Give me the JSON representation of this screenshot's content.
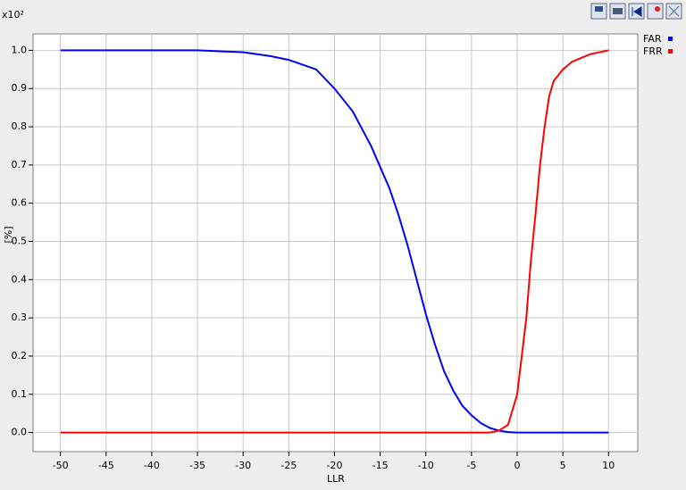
{
  "chart_data": {
    "type": "line",
    "x_label": "LLR",
    "y_label": "[%]",
    "y_multiplier": "x10²",
    "xlim": [
      -53,
      13.2
    ],
    "ylim": [
      -0.05,
      1.043
    ],
    "xticks": [
      -50,
      -45,
      -40,
      -35,
      -30,
      -25,
      -20,
      -15,
      -10,
      -5,
      0,
      5,
      10
    ],
    "yticks": [
      {
        "value": 0,
        "label": "0.0"
      },
      0.1,
      0.2,
      0.3,
      0.4,
      0.5,
      0.6,
      0.7,
      0.8,
      0.9,
      {
        "value": 1,
        "label": "1.0"
      }
    ],
    "grid": true,
    "legend": "right",
    "series": [
      {
        "name": "FAR",
        "color": "#0000ff",
        "x": [
          -50,
          -35,
          -30,
          -27,
          -25,
          -22,
          -20,
          -18,
          -16,
          -14,
          -13,
          -12,
          -11,
          -10,
          -9,
          -8,
          -7,
          -6,
          -5,
          -4,
          -3,
          -2,
          -1,
          0,
          10
        ],
        "values": [
          1.0,
          1.0,
          0.995,
          0.985,
          0.975,
          0.95,
          0.9,
          0.84,
          0.75,
          0.64,
          0.57,
          0.49,
          0.4,
          0.31,
          0.23,
          0.16,
          0.11,
          0.07,
          0.045,
          0.025,
          0.012,
          0.005,
          0.001,
          0,
          0
        ]
      },
      {
        "name": "FRR",
        "color": "#ff0000",
        "x": [
          -50,
          -3,
          -2,
          -1,
          -0.5,
          0,
          0.5,
          1,
          1.5,
          2,
          2.5,
          3,
          3.5,
          4,
          5,
          6,
          7,
          8,
          9,
          10
        ],
        "values": [
          0,
          0,
          0.005,
          0.02,
          0.06,
          0.1,
          0.2,
          0.3,
          0.45,
          0.57,
          0.7,
          0.8,
          0.88,
          0.92,
          0.95,
          0.97,
          0.98,
          0.99,
          0.995,
          1.0
        ]
      }
    ]
  }
}
